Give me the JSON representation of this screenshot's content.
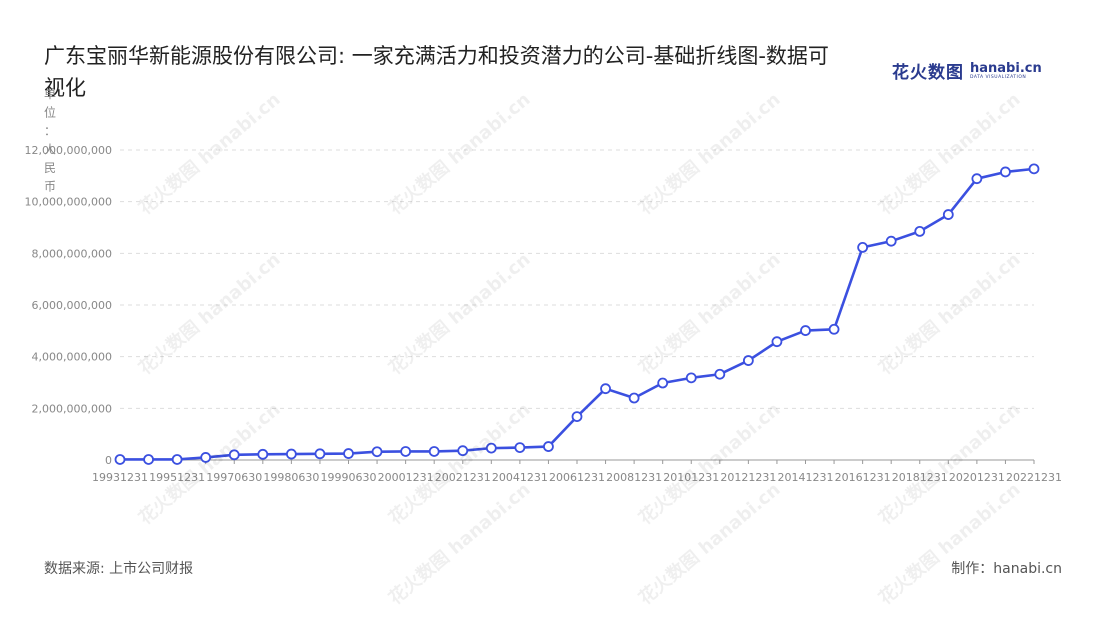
{
  "header": {
    "title": "广东宝丽华新能源股份有限公司: 一家充满活力和投资潜力的公司-基础折线图-数据可视化"
  },
  "logo": {
    "cn": "花火数图",
    "en": "hanabi.cn",
    "sub": "DATA VISUALIZATION"
  },
  "footer": {
    "source": "数据来源: 上市公司财报",
    "maker": "制作：hanabi.cn"
  },
  "colors": {
    "line": "#3b50e0",
    "grid": "#dddddd",
    "axis": "#999999"
  },
  "chart_data": {
    "type": "line",
    "ylabel": "单位：人民币",
    "ylim": [
      0,
      12000000000
    ],
    "yticks": [
      0,
      2000000000,
      4000000000,
      6000000000,
      8000000000,
      10000000000,
      12000000000
    ],
    "ytick_labels": [
      "0",
      "2,000,000,000",
      "4,000,000,000",
      "6,000,000,000",
      "8,000,000,000",
      "10,000,000,000",
      "12,000,000,000"
    ],
    "grid": true,
    "x": [
      "19931231",
      "19941231",
      "19951231",
      "19961231",
      "19970630",
      "19971231",
      "19980630",
      "19981231",
      "19990630",
      "19991231",
      "20001231",
      "20011231",
      "20021231",
      "20031231",
      "20041231",
      "20051231",
      "20061231",
      "20071231",
      "20081231",
      "20091231",
      "20101231",
      "20111231",
      "20121231",
      "20131231",
      "20141231",
      "20151231",
      "20161231",
      "20171231",
      "20181231",
      "20191231",
      "20201231",
      "20211231",
      "20221231"
    ],
    "xtick_labels": [
      "19931231",
      "19951231",
      "19970630",
      "19980630",
      "19990630",
      "20001231",
      "20021231",
      "20041231",
      "20061231",
      "20081231",
      "20101231",
      "20121231",
      "20141231",
      "20161231",
      "20181231",
      "20201231",
      "20221231"
    ],
    "series": [
      {
        "values": [
          20000000,
          20000000,
          20000000,
          100000000,
          200000000,
          220000000,
          230000000,
          240000000,
          250000000,
          320000000,
          330000000,
          330000000,
          360000000,
          460000000,
          480000000,
          520000000,
          1680000000,
          2760000000,
          2400000000,
          2980000000,
          3180000000,
          3320000000,
          3850000000,
          4580000000,
          5010000000,
          5060000000,
          8230000000,
          8470000000,
          8850000000,
          9500000000,
          10890000000,
          11150000000,
          11270000000
        ]
      }
    ]
  }
}
